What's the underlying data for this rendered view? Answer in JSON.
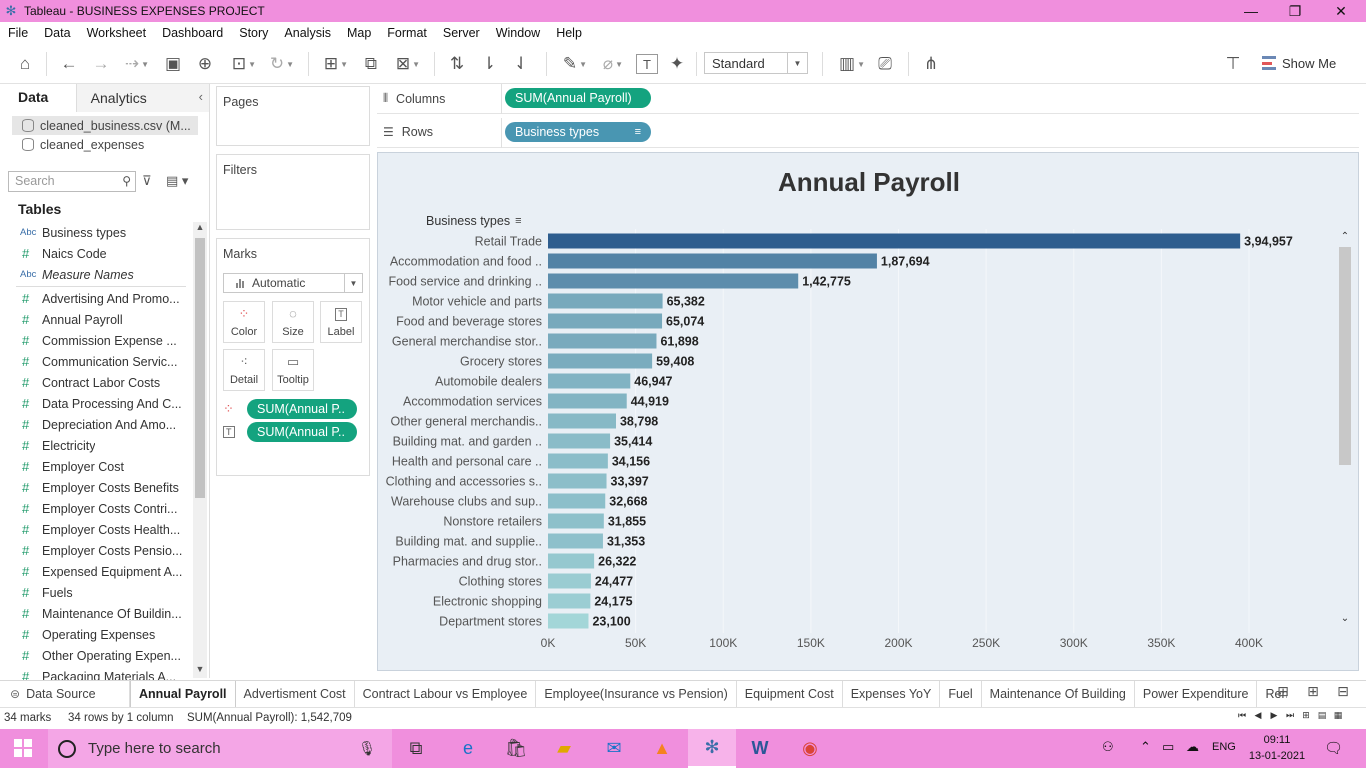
{
  "window": {
    "title": "Tableau - BUSINESS EXPENSES PROJECT",
    "minimize": "—",
    "restore": "❐",
    "close": "✕"
  },
  "menu": [
    "File",
    "Data",
    "Worksheet",
    "Dashboard",
    "Story",
    "Analysis",
    "Map",
    "Format",
    "Server",
    "Window",
    "Help"
  ],
  "toolbar": {
    "fit_mode": "Standard",
    "show_me": "Show Me"
  },
  "data_pane": {
    "tab_data": "Data",
    "tab_analytics": "Analytics",
    "datasources": [
      "cleaned_business.csv (M...",
      "cleaned_expenses"
    ],
    "search_placeholder": "Search",
    "tables_label": "Tables",
    "dimensions": [
      {
        "type": "Abc",
        "name": "Business types"
      },
      {
        "type": "#",
        "name": "Naics Code"
      },
      {
        "type": "Abc",
        "name": "Measure Names"
      }
    ],
    "measures": [
      "Advertising And Promo...",
      "Annual Payroll",
      "Commission Expense ...",
      "Communication Servic...",
      "Contract Labor Costs",
      "Data Processing And C...",
      "Depreciation And Amo...",
      "Electricity",
      "Employer Cost",
      "Employer Costs Benefits",
      "Employer Costs Contri...",
      "Employer Costs Health...",
      "Employer Costs Pensio...",
      "Expensed Equipment A...",
      "Fuels",
      "Maintenance Of Buildin...",
      "Operating Expenses",
      "Other Operating Expen...",
      "Packaging Materials A..."
    ]
  },
  "cards": {
    "pages": "Pages",
    "filters": "Filters",
    "marks": "Marks",
    "mark_type": "Automatic",
    "mark_buttons": [
      "Color",
      "Size",
      "Label",
      "Detail",
      "Tooltip"
    ],
    "mark_pills": [
      "SUM(Annual P..",
      "SUM(Annual P.."
    ]
  },
  "shelves": {
    "columns_label": "Columns",
    "columns_pill": "SUM(Annual Payroll)",
    "rows_label": "Rows",
    "rows_pill": "Business types"
  },
  "chart_data": {
    "type": "bar",
    "title": "Annual Payroll",
    "row_header": "Business types",
    "orientation": "horizontal",
    "categories": [
      "Retail Trade",
      "Accommodation and food ..",
      "Food service and drinking ..",
      "Motor vehicle and parts",
      "Food and beverage stores",
      "General merchandise stor..",
      "Grocery stores",
      "Automobile dealers",
      "Accommodation services",
      "Other general merchandis..",
      "Building mat. and garden ..",
      "Health and personal care ..",
      "Clothing and accessories s..",
      "Warehouse clubs and sup..",
      "Nonstore retailers",
      "Building mat. and supplie..",
      "Pharmacies and drug stor..",
      "Clothing stores",
      "Electronic shopping",
      "Department stores"
    ],
    "values": [
      394957,
      187694,
      142775,
      65382,
      65074,
      61898,
      59408,
      46947,
      44919,
      38798,
      35414,
      34156,
      33397,
      32668,
      31855,
      31353,
      26322,
      24477,
      24175,
      23100
    ],
    "labels": [
      "3,94,957",
      "1,87,694",
      "1,42,775",
      "65,382",
      "65,074",
      "61,898",
      "59,408",
      "46,947",
      "44,919",
      "38,798",
      "35,414",
      "34,156",
      "33,397",
      "32,668",
      "31,855",
      "31,353",
      "26,322",
      "24,477",
      "24,175",
      "23,100"
    ],
    "xlim": [
      0,
      400000
    ],
    "xticks": [
      0,
      50000,
      100000,
      150000,
      200000,
      250000,
      300000,
      350000,
      400000
    ],
    "xtick_labels": [
      "0K",
      "50K",
      "100K",
      "150K",
      "200K",
      "250K",
      "300K",
      "350K",
      "400K"
    ],
    "xlabel": "",
    "ylabel": "",
    "color_low": "#a3d6d8",
    "color_high": "#2e5d8e",
    "grid": true
  },
  "sheet_tabs": [
    "Data Source",
    "Annual Payroll",
    "Advertisment Cost",
    "Contract Labour vs Employee",
    "Employee(Insurance vs Pension)",
    "Equipment Cost",
    "Expenses YoY",
    "Fuel",
    "Maintenance Of Building",
    "Power Expenditure",
    "Ren"
  ],
  "status": {
    "marks": "34 marks",
    "rows_cols": "34 rows by 1 column",
    "sum": "SUM(Annual Payroll): 1,542,709"
  },
  "taskbar": {
    "search_placeholder": "Type here to search",
    "lang": "ENG",
    "time": "09:11",
    "date": "13-01-2021"
  }
}
